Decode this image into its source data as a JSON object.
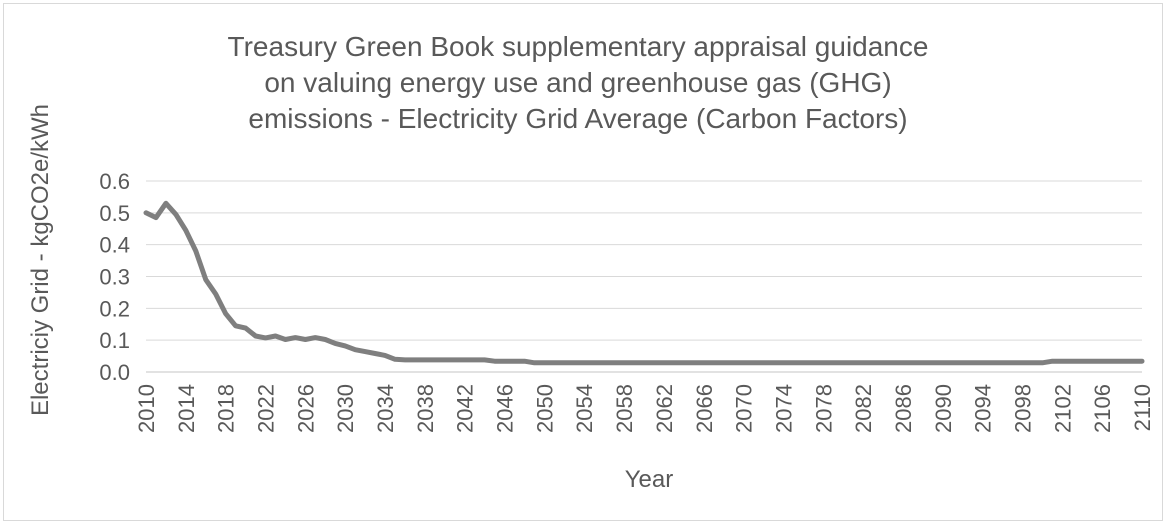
{
  "chart_data": {
    "type": "line",
    "title_lines": [
      "Treasury Green Book supplementary appraisal guidance",
      "on valuing energy use and greenhouse gas (GHG)",
      "emissions - Electricity Grid Average (Carbon Factors)"
    ],
    "xlabel": "Year",
    "ylabel": "Electriciy Grid - kgCO2e/kWh",
    "ylim": [
      0,
      0.6
    ],
    "y_ticks": [
      "0.0",
      "0.1",
      "0.2",
      "0.3",
      "0.4",
      "0.5",
      "0.6"
    ],
    "x_ticks": [
      "2010",
      "2014",
      "2018",
      "2022",
      "2026",
      "2030",
      "2034",
      "2038",
      "2042",
      "2046",
      "2050",
      "2054",
      "2058",
      "2062",
      "2066",
      "2070",
      "2074",
      "2078",
      "2082",
      "2086",
      "2090",
      "2094",
      "2098",
      "2102",
      "2106",
      "2110"
    ],
    "grid": true,
    "legend": "none",
    "series": [
      {
        "color": "#7f7f7f",
        "x": [
          2010,
          2011,
          2012,
          2013,
          2014,
          2015,
          2016,
          2017,
          2018,
          2019,
          2020,
          2021,
          2022,
          2023,
          2024,
          2025,
          2026,
          2027,
          2028,
          2029,
          2030,
          2031,
          2032,
          2033,
          2034,
          2035,
          2036,
          2040,
          2044,
          2045,
          2048,
          2049,
          2050,
          2100,
          2101,
          2110
        ],
        "values": [
          0.5,
          0.485,
          0.53,
          0.495,
          0.445,
          0.38,
          0.29,
          0.245,
          0.183,
          0.145,
          0.138,
          0.113,
          0.107,
          0.113,
          0.102,
          0.108,
          0.102,
          0.108,
          0.102,
          0.09,
          0.082,
          0.07,
          0.064,
          0.058,
          0.052,
          0.04,
          0.038,
          0.038,
          0.038,
          0.034,
          0.034,
          0.029,
          0.029,
          0.029,
          0.034,
          0.034
        ]
      }
    ]
  }
}
